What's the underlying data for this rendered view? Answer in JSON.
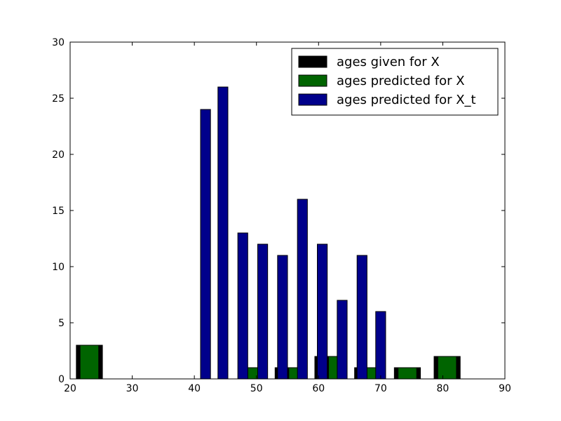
{
  "chart_data": {
    "type": "bar",
    "xlim": [
      20,
      90
    ],
    "ylim": [
      0,
      30
    ],
    "x_ticks": [
      20,
      30,
      40,
      50,
      60,
      70,
      80,
      90
    ],
    "y_ticks": [
      0,
      5,
      10,
      15,
      20,
      25,
      30
    ],
    "legend_position": "top-right",
    "grid": false,
    "series": [
      {
        "name": "ages given for X",
        "color": "#000000",
        "bins": [
          {
            "x0": 21.0,
            "x1": 25.2,
            "value": 3
          },
          {
            "x0": 53.0,
            "x1": 57.2,
            "value": 1
          },
          {
            "x0": 59.4,
            "x1": 63.6,
            "value": 2
          },
          {
            "x0": 65.8,
            "x1": 70.0,
            "value": 1
          },
          {
            "x0": 72.2,
            "x1": 76.4,
            "value": 1
          },
          {
            "x0": 78.6,
            "x1": 82.8,
            "value": 2
          }
        ]
      },
      {
        "name": "ages predicted for X",
        "color": "#006400",
        "bins": [
          {
            "x0": 21.6,
            "x1": 24.6,
            "value": 3
          },
          {
            "x0": 48.6,
            "x1": 50.2,
            "value": 1
          },
          {
            "x0": 55.2,
            "x1": 56.8,
            "value": 1
          },
          {
            "x0": 61.6,
            "x1": 63.2,
            "value": 2
          },
          {
            "x0": 67.8,
            "x1": 69.4,
            "value": 1
          },
          {
            "x0": 72.8,
            "x1": 75.8,
            "value": 1
          },
          {
            "x0": 79.2,
            "x1": 82.2,
            "value": 2
          }
        ]
      },
      {
        "name": "ages predicted for X_t",
        "color": "#00008b",
        "bins": [
          {
            "x0": 41.0,
            "x1": 42.6,
            "value": 24
          },
          {
            "x0": 43.8,
            "x1": 45.4,
            "value": 26
          },
          {
            "x0": 47.0,
            "x1": 48.6,
            "value": 13
          },
          {
            "x0": 50.2,
            "x1": 51.8,
            "value": 12
          },
          {
            "x0": 53.4,
            "x1": 55.0,
            "value": 11
          },
          {
            "x0": 56.6,
            "x1": 58.2,
            "value": 16
          },
          {
            "x0": 59.8,
            "x1": 61.4,
            "value": 12
          },
          {
            "x0": 63.0,
            "x1": 64.6,
            "value": 7
          },
          {
            "x0": 66.2,
            "x1": 67.8,
            "value": 11
          },
          {
            "x0": 69.2,
            "x1": 70.8,
            "value": 6
          }
        ]
      }
    ]
  }
}
